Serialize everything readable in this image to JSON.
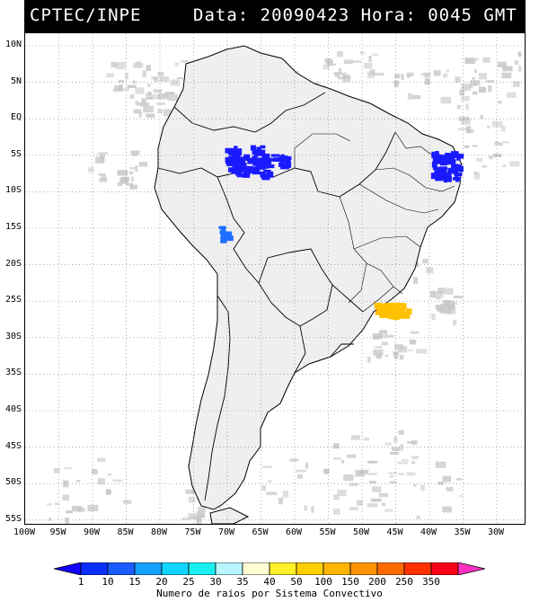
{
  "header": {
    "agency": "CPTEC/INPE",
    "datetime": "Data: 20090423 Hora: 0045 GMT"
  },
  "map": {
    "lat_labels": [
      "10N",
      "5N",
      "EQ",
      "5S",
      "10S",
      "15S",
      "20S",
      "25S",
      "30S",
      "35S",
      "40S",
      "45S",
      "50S",
      "55S"
    ],
    "lon_labels": [
      "100W",
      "95W",
      "90W",
      "85W",
      "80W",
      "75W",
      "70W",
      "65W",
      "60W",
      "55W",
      "50W",
      "45W",
      "40W",
      "35W",
      "30W"
    ],
    "cloud_cover_color": "#c8c8c8",
    "land_color": "#efefef",
    "systems": [
      {
        "region": "western Amazon",
        "category": "1-10",
        "color": "#1a1aff"
      },
      {
        "region": "northeast Brazil coast",
        "category": "1-10",
        "color": "#1a1aff"
      },
      {
        "region": "southern Peru coast",
        "category": "10-15",
        "color": "#1e6eff"
      },
      {
        "region": "off southern Brazil",
        "category": "50-100",
        "color": "#ffc000"
      }
    ]
  },
  "colorbar": {
    "labels": [
      "1",
      "10",
      "15",
      "20",
      "25",
      "30",
      "35",
      "40",
      "50",
      "100",
      "150",
      "200",
      "250",
      "350"
    ],
    "colors": [
      "#1200ff",
      "#0a2eff",
      "#1a5cff",
      "#16a0ff",
      "#10d6ff",
      "#18f0f0",
      "#b8f6ff",
      "#fffcd4",
      "#fff02a",
      "#ffd000",
      "#ffb400",
      "#ff9200",
      "#ff6a00",
      "#ff3200",
      "#ff0018",
      "#ff30c0"
    ],
    "caption": "Numero de raios por Sistema Convectivo"
  }
}
